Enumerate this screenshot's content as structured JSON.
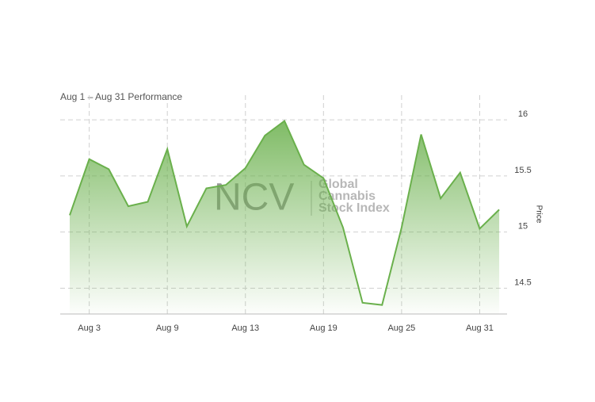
{
  "chart_data": {
    "type": "area",
    "title": "Aug 1 – Aug 31 Performance",
    "y_axis_label": "Price",
    "watermark": {
      "logo": "NCV",
      "lines": [
        "Global",
        "Cannabis",
        "Stock Index"
      ]
    },
    "categories": [
      null,
      "Aug 3",
      null,
      null,
      null,
      "Aug 9",
      null,
      null,
      null,
      "Aug 13",
      null,
      null,
      null,
      "Aug 19",
      null,
      null,
      null,
      "Aug 25",
      null,
      null,
      null,
      "Aug 31",
      null
    ],
    "values": [
      15.15,
      15.65,
      15.56,
      15.23,
      15.27,
      15.74,
      15.05,
      15.39,
      15.42,
      15.57,
      15.86,
      15.99,
      15.6,
      15.48,
      15.04,
      14.37,
      14.35,
      15.04,
      15.87,
      15.3,
      15.53,
      15.03,
      15.2
    ],
    "color": "#6ab04c",
    "ylim": [
      14.27,
      16.22
    ],
    "yticks": [
      14.5,
      15,
      15.5,
      16
    ],
    "grid": true
  }
}
